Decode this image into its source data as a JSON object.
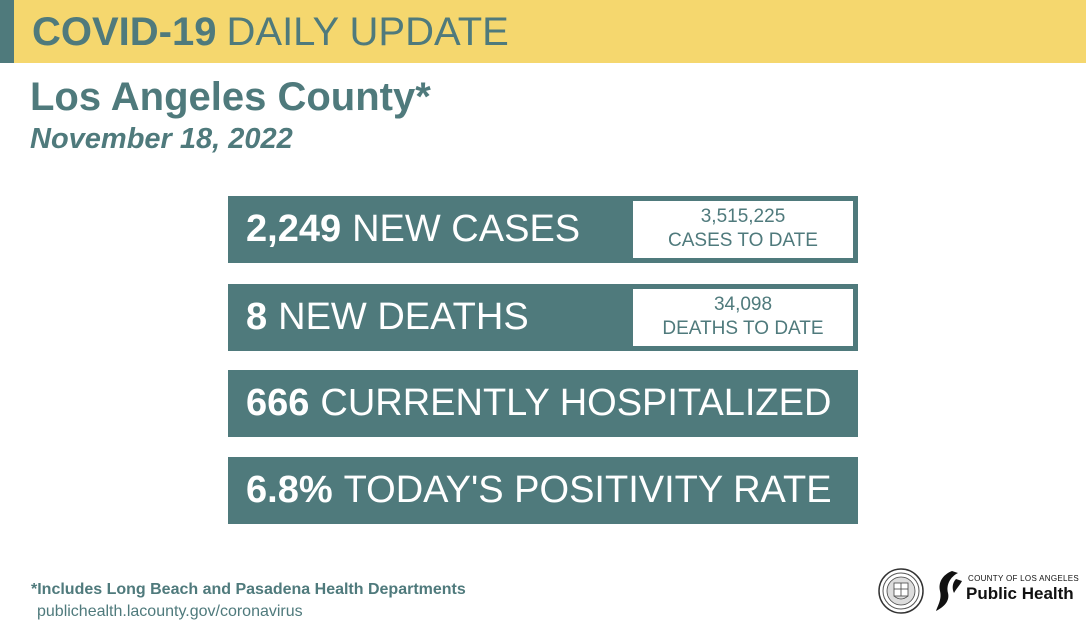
{
  "banner": {
    "title_bold": "COVID-19",
    "title_rest": "DAILY UPDATE"
  },
  "header": {
    "county": "Los Angeles County*",
    "date": "November 18, 2022"
  },
  "stats": [
    {
      "number": "2,249",
      "label": "NEW CASES",
      "to_date_value": "3,515,225",
      "to_date_label": "CASES TO DATE"
    },
    {
      "number": "8",
      "label": "NEW DEATHS",
      "to_date_value": "34,098",
      "to_date_label": "DEATHS TO DATE"
    },
    {
      "number": "666",
      "label": "CURRENTLY HOSPITALIZED"
    },
    {
      "number": "6.8%",
      "label": "TODAY'S POSITIVITY RATE"
    }
  ],
  "footer": {
    "footnote": "*Includes Long Beach and Pasadena Health Departments",
    "url": "publichealth.lacounty.gov/coronavirus",
    "logo_small": "County of Los Angeles",
    "logo_big": "Public Health"
  },
  "colors": {
    "banner": "#f5d76e",
    "teal": "#4f7a7c",
    "white": "#ffffff"
  }
}
